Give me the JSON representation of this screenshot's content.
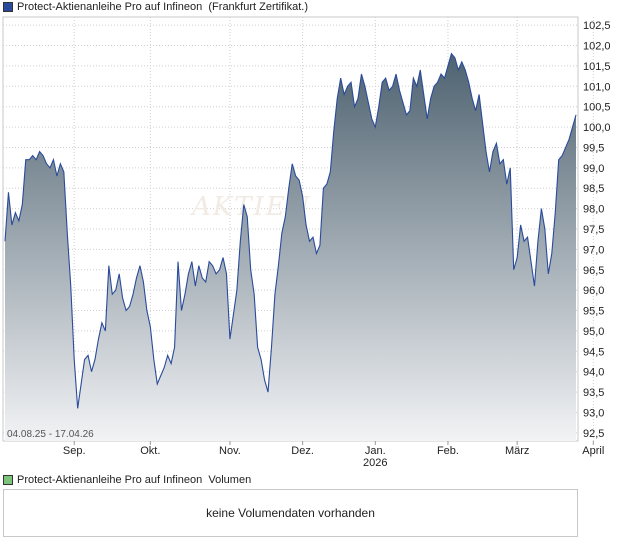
{
  "legend": {
    "price_label": "Protect-Aktienanleihe Pro auf Infineon  (Frankfurt Zertifikat.)",
    "price_color": "#2a4b9b",
    "volume_label": "Protect-Aktienanleihe Pro auf Infineon  Volumen",
    "volume_color": "#7cc47c"
  },
  "volume_panel": {
    "message": "keine Volumendaten vorhanden"
  },
  "watermark": "AKTIEN",
  "chart_data": {
    "type": "area",
    "date_range_label": "04.08.25 - 17.04.26",
    "y_ticks": [
      "102,5",
      "102,0",
      "101,5",
      "101,0",
      "100,5",
      "100,0",
      "99,5",
      "99,0",
      "98,5",
      "98,0",
      "97,5",
      "97,0",
      "96,5",
      "96,0",
      "95,5",
      "95,0",
      "94,5",
      "94,0",
      "93,5",
      "93,0",
      "92,5"
    ],
    "ylim": [
      92.3,
      102.7
    ],
    "x_ticks": [
      {
        "label": "Sep.",
        "index": 20
      },
      {
        "label": "Okt.",
        "index": 42
      },
      {
        "label": "Nov.",
        "index": 65
      },
      {
        "label": "Dez.",
        "index": 86
      },
      {
        "label": "Jan.",
        "sub": "2026",
        "index": 107
      },
      {
        "label": "Feb.",
        "index": 128
      },
      {
        "label": "März",
        "index": 148
      },
      {
        "label": "April",
        "index": 170
      }
    ],
    "line_color": "#2a4b9b",
    "fill_top_color": "#4e6270",
    "fill_bottom_color": "#f2f3f5",
    "grid": true,
    "values": [
      97.2,
      98.4,
      97.6,
      97.9,
      97.7,
      98.1,
      99.2,
      99.2,
      99.3,
      99.2,
      99.4,
      99.3,
      99.1,
      99.0,
      99.2,
      98.8,
      99.1,
      98.9,
      97.4,
      96.1,
      94.3,
      93.1,
      93.7,
      94.3,
      94.4,
      94.0,
      94.3,
      94.8,
      95.2,
      95.0,
      96.6,
      95.9,
      96.0,
      96.4,
      95.8,
      95.5,
      95.6,
      95.9,
      96.3,
      96.6,
      96.2,
      95.5,
      95.1,
      94.3,
      93.7,
      93.9,
      94.1,
      94.4,
      94.2,
      94.6,
      96.7,
      95.5,
      95.9,
      96.4,
      96.7,
      96.1,
      96.6,
      96.3,
      96.2,
      96.7,
      96.6,
      96.4,
      96.5,
      96.8,
      96.4,
      94.8,
      95.4,
      96.0,
      97.2,
      98.1,
      97.8,
      96.5,
      95.9,
      94.6,
      94.3,
      93.8,
      93.5,
      94.6,
      95.9,
      96.6,
      97.4,
      97.8,
      98.5,
      99.1,
      98.8,
      98.7,
      98.3,
      97.6,
      97.2,
      97.3,
      96.9,
      97.1,
      98.5,
      98.6,
      98.9,
      99.9,
      100.7,
      101.2,
      100.8,
      101.0,
      101.1,
      100.5,
      100.7,
      101.3,
      101.0,
      100.6,
      100.2,
      100.0,
      100.5,
      101.1,
      101.2,
      100.9,
      101.0,
      101.3,
      100.9,
      100.6,
      100.3,
      100.4,
      101.2,
      101.0,
      101.4,
      100.8,
      100.2,
      100.7,
      101.0,
      101.1,
      101.3,
      101.2,
      101.5,
      101.8,
      101.7,
      101.4,
      101.6,
      101.4,
      101.1,
      100.7,
      100.4,
      100.8,
      100.1,
      99.4,
      98.9,
      99.4,
      99.6,
      99.1,
      99.2,
      98.6,
      99.0,
      96.5,
      96.8,
      97.6,
      97.2,
      97.3,
      96.7,
      96.1,
      97.2,
      98.0,
      97.5,
      96.4,
      96.9,
      97.9,
      99.2,
      99.3,
      99.5,
      99.7,
      100.0,
      100.3
    ]
  }
}
